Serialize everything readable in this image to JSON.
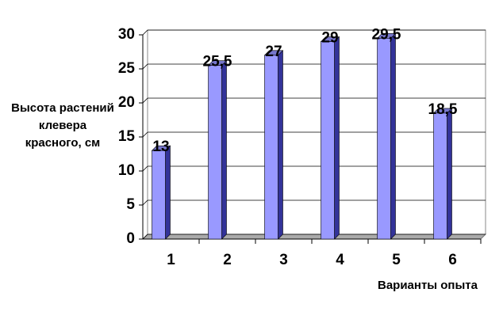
{
  "chart_data": {
    "type": "bar",
    "y_label": "Высота растений клевера красного, см",
    "x_label": "Варианты опыта",
    "categories": [
      "1",
      "2",
      "3",
      "4",
      "5",
      "6"
    ],
    "values": [
      13,
      25.5,
      27,
      29,
      29.5,
      18.5
    ],
    "value_labels": [
      "13",
      "25,5",
      "27",
      "29",
      "29,5",
      "18,5"
    ],
    "color": "#9999ff",
    "ylim": [
      0,
      30
    ],
    "yticks": [
      0,
      5,
      10,
      15,
      20,
      25,
      30
    ],
    "grid": true
  }
}
